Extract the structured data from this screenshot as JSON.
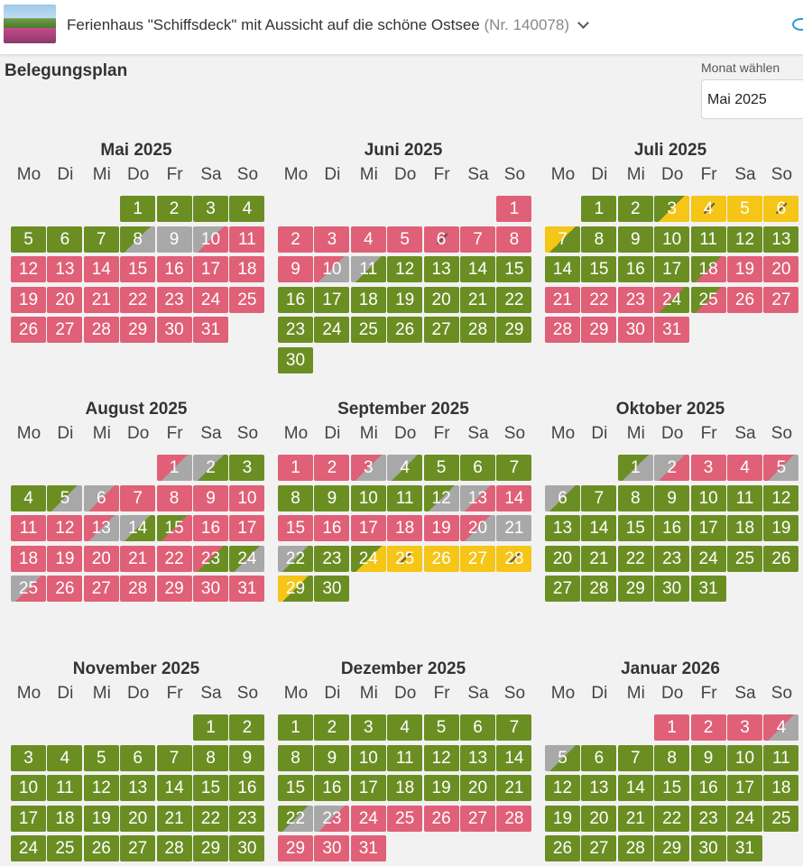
{
  "header": {
    "property_title": "Ferienhaus \"Schiffsdeck\" mit Aussicht auf die schöne Ostsee",
    "property_nr": "(Nr. 140078)"
  },
  "plan_title": "Belegungsplan",
  "month_select": {
    "label": "Monat wählen",
    "value": "Mai 2025"
  },
  "weekday_labels": [
    "Mo",
    "Di",
    "Mi",
    "Do",
    "Fr",
    "Sa",
    "So"
  ],
  "colors": {
    "free": "#6b8e23",
    "booked": "#e06078",
    "unavailable": "#a8a8a8",
    "option": "#f5c517"
  },
  "months": [
    {
      "title": "Mai 2025",
      "offset": 3,
      "days": [
        "free",
        "free",
        "free",
        "free",
        "free",
        "free",
        "free",
        "free>unavailable",
        "unavailable",
        "unavailable>booked",
        "booked",
        "booked",
        "booked",
        "booked",
        "booked",
        "booked",
        "booked",
        "booked",
        "booked",
        "booked",
        "booked",
        "booked",
        "booked",
        "booked",
        "booked",
        "booked",
        "booked",
        "booked",
        "booked",
        "booked",
        "booked"
      ]
    },
    {
      "title": "Juni 2025",
      "offset": 6,
      "days": [
        "booked",
        "booked",
        "booked",
        "booked",
        "booked",
        "booked/",
        "booked",
        "booked",
        "booked",
        "booked>unavailable",
        "unavailable>free",
        "free",
        "free",
        "free",
        "free",
        "free",
        "free",
        "free",
        "free",
        "free",
        "free",
        "free",
        "free",
        "free",
        "free",
        "free",
        "free",
        "free",
        "free",
        "free"
      ]
    },
    {
      "title": "Juli 2025",
      "offset": 1,
      "days": [
        "free",
        "free",
        "free>option",
        "option/",
        "option",
        "option/",
        "option>free",
        "free",
        "free",
        "free",
        "free",
        "free",
        "free",
        "free",
        "free",
        "free",
        "free",
        "free>booked",
        "booked",
        "booked",
        "booked",
        "booked",
        "booked",
        "booked>free",
        "free>booked",
        "booked",
        "booked",
        "booked",
        "booked",
        "booked",
        "booked"
      ]
    },
    {
      "title": "August 2025",
      "offset": 4,
      "days": [
        "booked>unavailable",
        "unavailable>free",
        "free",
        "free",
        "free>unavailable",
        "unavailable>booked",
        "booked",
        "booked",
        "booked",
        "booked",
        "booked",
        "booked",
        "booked>unavailable",
        "unavailable>free",
        "free>booked",
        "booked",
        "booked",
        "booked",
        "booked",
        "booked",
        "booked",
        "booked",
        "booked>free",
        "free>unavailable",
        "unavailable>booked",
        "booked",
        "booked",
        "booked",
        "booked",
        "booked",
        "booked"
      ]
    },
    {
      "title": "September 2025",
      "offset": 0,
      "days": [
        "booked",
        "booked",
        "booked>unavailable",
        "unavailable>free",
        "free",
        "free",
        "free",
        "free",
        "free",
        "free",
        "free",
        "free>unavailable",
        "unavailable>booked",
        "booked",
        "booked",
        "booked",
        "booked",
        "booked",
        "booked",
        "booked>unavailable",
        "unavailable",
        "unavailable>free",
        "free",
        "free>option",
        "option/",
        "option",
        "option",
        "option/",
        "option>free",
        "free"
      ]
    },
    {
      "title": "Oktober 2025",
      "offset": 2,
      "days": [
        "free>unavailable",
        "unavailable>booked",
        "booked",
        "booked",
        "booked>unavailable",
        "unavailable>free",
        "free",
        "free",
        "free",
        "free",
        "free",
        "free",
        "free",
        "free",
        "free",
        "free",
        "free",
        "free",
        "free",
        "free",
        "free",
        "free",
        "free",
        "free",
        "free",
        "free",
        "free",
        "free",
        "free",
        "free",
        "free"
      ]
    },
    {
      "title": "November 2025",
      "offset": 5,
      "days": [
        "free",
        "free",
        "free",
        "free",
        "free",
        "free",
        "free",
        "free",
        "free",
        "free",
        "free",
        "free",
        "free",
        "free",
        "free",
        "free",
        "free",
        "free",
        "free",
        "free",
        "free",
        "free",
        "free",
        "free",
        "free",
        "free",
        "free",
        "free",
        "free",
        "free"
      ]
    },
    {
      "title": "Dezember 2025",
      "offset": 0,
      "days": [
        "free",
        "free",
        "free",
        "free",
        "free",
        "free",
        "free",
        "free",
        "free",
        "free",
        "free",
        "free",
        "free",
        "free",
        "free",
        "free",
        "free",
        "free",
        "free",
        "free",
        "free",
        "free>unavailable",
        "unavailable>booked",
        "booked",
        "booked",
        "booked",
        "booked",
        "booked",
        "booked",
        "booked",
        "booked"
      ]
    },
    {
      "title": "Januar 2026",
      "offset": 3,
      "days": [
        "booked",
        "booked",
        "booked",
        "booked>unavailable",
        "unavailable>free",
        "free",
        "free",
        "free",
        "free",
        "free",
        "free",
        "free",
        "free",
        "free",
        "free",
        "free",
        "free",
        "free",
        "free",
        "free",
        "free",
        "free",
        "free",
        "free",
        "free",
        "free",
        "free",
        "free",
        "free",
        "free",
        "free"
      ]
    }
  ]
}
